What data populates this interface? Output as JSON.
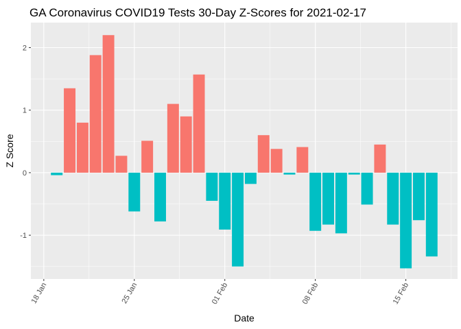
{
  "chart_data": {
    "type": "bar",
    "title": "GA Coronavirus COVID19 Tests 30-Day Z-Scores for 2021-02-17",
    "xlabel": "Date",
    "ylabel": "Z Score",
    "x_range": [
      "2021-01-17",
      "2021-02-19"
    ],
    "ylim": [
      -1.7,
      2.4
    ],
    "y_ticks": [
      -1,
      0,
      1,
      2
    ],
    "y_tick_labels": [
      "-1",
      "0",
      "1",
      "2"
    ],
    "x_ticks": [
      "2021-01-18",
      "2021-01-25",
      "2021-02-01",
      "2021-02-08",
      "2021-02-15"
    ],
    "x_tick_labels": [
      "18 Jan",
      "25 Jan",
      "01 Feb",
      "08 Feb",
      "15 Feb"
    ],
    "grid": true,
    "legend": "none",
    "colors": {
      "positive": "#F8766D",
      "negative": "#00BFC4",
      "panel": "#EBEBEB",
      "grid": "#FFFFFF"
    },
    "x": [
      "2021-01-19",
      "2021-01-20",
      "2021-01-21",
      "2021-01-22",
      "2021-01-23",
      "2021-01-24",
      "2021-01-25",
      "2021-01-26",
      "2021-01-27",
      "2021-01-28",
      "2021-01-29",
      "2021-01-30",
      "2021-01-31",
      "2021-02-01",
      "2021-02-02",
      "2021-02-03",
      "2021-02-04",
      "2021-02-05",
      "2021-02-06",
      "2021-02-07",
      "2021-02-08",
      "2021-02-09",
      "2021-02-10",
      "2021-02-11",
      "2021-02-12",
      "2021-02-13",
      "2021-02-14",
      "2021-02-15",
      "2021-02-16",
      "2021-02-17"
    ],
    "values": [
      -0.04,
      1.35,
      0.8,
      1.88,
      2.2,
      0.27,
      -0.62,
      0.51,
      -0.78,
      1.1,
      0.9,
      1.57,
      -0.45,
      -0.91,
      -1.5,
      -0.18,
      0.6,
      0.38,
      -0.03,
      0.41,
      -0.93,
      -0.83,
      -0.97,
      -0.03,
      -0.51,
      0.45,
      -0.83,
      -1.53,
      -0.76,
      -1.34
    ]
  }
}
